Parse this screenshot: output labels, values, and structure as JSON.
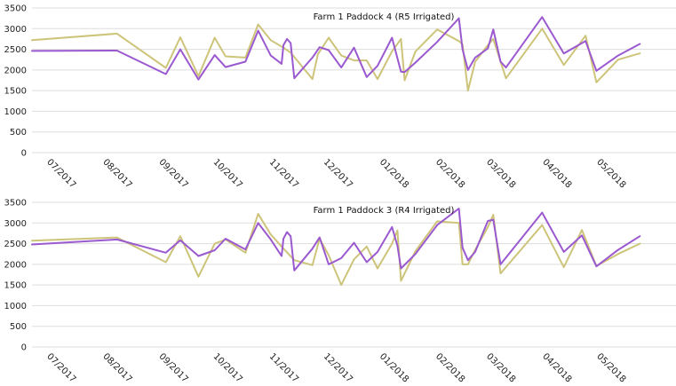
{
  "chart_data": [
    {
      "type": "line",
      "title": "Farm 1 Paddock 4 (R5 Irrigated)",
      "xlabel": "",
      "ylabel": "",
      "ylim": [
        0,
        3500
      ],
      "yticks": [
        0,
        500,
        1000,
        1500,
        2000,
        2500,
        3000,
        3500
      ],
      "xlim": [
        "2017-06-22",
        "2018-06-13"
      ],
      "x_tick_labels": [
        {
          "date": "2017-07-01",
          "label": "07/2017"
        },
        {
          "date": "2017-08-01",
          "label": "08/2017"
        },
        {
          "date": "2017-09-01",
          "label": "09/2017"
        },
        {
          "date": "2017-10-01",
          "label": "10/2017"
        },
        {
          "date": "2017-11-01",
          "label": "11/2017"
        },
        {
          "date": "2017-12-01",
          "label": "12/2017"
        },
        {
          "date": "2018-01-01",
          "label": "01/2018"
        },
        {
          "date": "2018-02-01",
          "label": "02/2018"
        },
        {
          "date": "2018-03-01",
          "label": "03/2018"
        },
        {
          "date": "2018-04-01",
          "label": "04/2018"
        },
        {
          "date": "2018-05-01",
          "label": "05/2018"
        }
      ],
      "grid": "horizontal",
      "legend": "none",
      "series": [
        {
          "color": "#cdc47a",
          "points": [
            [
              "2017-06-22",
              2720
            ],
            [
              "2017-08-08",
              2880
            ],
            [
              "2017-09-04",
              2050
            ],
            [
              "2017-09-12",
              2790
            ],
            [
              "2017-09-22",
              1850
            ],
            [
              "2017-10-01",
              2780
            ],
            [
              "2017-10-07",
              2330
            ],
            [
              "2017-10-18",
              2300
            ],
            [
              "2017-10-25",
              3100
            ],
            [
              "2017-11-01",
              2720
            ],
            [
              "2017-11-08",
              2540
            ],
            [
              "2017-11-12",
              2420
            ],
            [
              "2017-11-24",
              1780
            ],
            [
              "2017-11-27",
              2380
            ],
            [
              "2017-12-03",
              2780
            ],
            [
              "2017-12-10",
              2350
            ],
            [
              "2017-12-17",
              2230
            ],
            [
              "2017-12-24",
              2230
            ],
            [
              "2017-12-30",
              1780
            ],
            [
              "2018-01-07",
              2450
            ],
            [
              "2018-01-12",
              2750
            ],
            [
              "2018-01-14",
              1750
            ],
            [
              "2018-01-20",
              2450
            ],
            [
              "2018-02-01",
              2980
            ],
            [
              "2018-02-13",
              2700
            ],
            [
              "2018-02-15",
              2620
            ],
            [
              "2018-02-18",
              1500
            ],
            [
              "2018-02-22",
              2200
            ],
            [
              "2018-03-01",
              2600
            ],
            [
              "2018-03-04",
              2750
            ],
            [
              "2018-03-11",
              1800
            ],
            [
              "2018-03-31",
              3000
            ],
            [
              "2018-04-12",
              2120
            ],
            [
              "2018-04-24",
              2830
            ],
            [
              "2018-04-30",
              1700
            ],
            [
              "2018-05-12",
              2250
            ],
            [
              "2018-05-24",
              2400
            ]
          ]
        },
        {
          "color": "#9b59d0",
          "points": [
            [
              "2017-06-22",
              2460
            ],
            [
              "2017-08-08",
              2470
            ],
            [
              "2017-09-04",
              1900
            ],
            [
              "2017-09-12",
              2500
            ],
            [
              "2017-09-22",
              1770
            ],
            [
              "2017-10-01",
              2360
            ],
            [
              "2017-10-07",
              2070
            ],
            [
              "2017-10-18",
              2200
            ],
            [
              "2017-10-25",
              2950
            ],
            [
              "2017-11-01",
              2350
            ],
            [
              "2017-11-07",
              2150
            ],
            [
              "2017-11-08",
              2600
            ],
            [
              "2017-11-10",
              2750
            ],
            [
              "2017-11-12",
              2650
            ],
            [
              "2017-11-14",
              1800
            ],
            [
              "2017-11-24",
              2300
            ],
            [
              "2017-11-28",
              2550
            ],
            [
              "2017-12-03",
              2480
            ],
            [
              "2017-12-10",
              2060
            ],
            [
              "2017-12-17",
              2540
            ],
            [
              "2017-12-24",
              1830
            ],
            [
              "2017-12-30",
              2100
            ],
            [
              "2018-01-07",
              2780
            ],
            [
              "2018-01-12",
              1960
            ],
            [
              "2018-01-14",
              1950
            ],
            [
              "2018-01-20",
              2180
            ],
            [
              "2018-02-01",
              2680
            ],
            [
              "2018-02-13",
              3250
            ],
            [
              "2018-02-15",
              2500
            ],
            [
              "2018-02-18",
              2000
            ],
            [
              "2018-02-22",
              2300
            ],
            [
              "2018-03-01",
              2520
            ],
            [
              "2018-03-04",
              2980
            ],
            [
              "2018-03-08",
              2200
            ],
            [
              "2018-03-11",
              2060
            ],
            [
              "2018-03-31",
              3280
            ],
            [
              "2018-04-12",
              2400
            ],
            [
              "2018-04-24",
              2700
            ],
            [
              "2018-04-30",
              1980
            ],
            [
              "2018-05-12",
              2350
            ],
            [
              "2018-05-24",
              2630
            ]
          ]
        }
      ]
    },
    {
      "type": "line",
      "title": "Farm 1 Paddock 3 (R4 Irrigated)",
      "xlabel": "",
      "ylabel": "",
      "ylim": [
        0,
        3500
      ],
      "yticks": [
        0,
        500,
        1000,
        1500,
        2000,
        2500,
        3000,
        3500
      ],
      "xlim": [
        "2017-06-22",
        "2018-06-13"
      ],
      "x_tick_labels": [
        {
          "date": "2017-07-01",
          "label": "07/2017"
        },
        {
          "date": "2017-08-01",
          "label": "08/2017"
        },
        {
          "date": "2017-09-01",
          "label": "09/2017"
        },
        {
          "date": "2017-10-01",
          "label": "10/2017"
        },
        {
          "date": "2017-11-01",
          "label": "11/2017"
        },
        {
          "date": "2017-12-01",
          "label": "12/2017"
        },
        {
          "date": "2018-01-01",
          "label": "01/2018"
        },
        {
          "date": "2018-02-01",
          "label": "02/2018"
        },
        {
          "date": "2018-03-01",
          "label": "03/2018"
        },
        {
          "date": "2018-04-01",
          "label": "04/2018"
        },
        {
          "date": "2018-05-01",
          "label": "05/2018"
        }
      ],
      "grid": "horizontal",
      "legend": "none",
      "series": [
        {
          "color": "#cdc47a",
          "points": [
            [
              "2017-06-22",
              2570
            ],
            [
              "2017-08-08",
              2650
            ],
            [
              "2017-09-04",
              2050
            ],
            [
              "2017-09-12",
              2680
            ],
            [
              "2017-09-22",
              1700
            ],
            [
              "2017-10-01",
              2500
            ],
            [
              "2017-10-07",
              2600
            ],
            [
              "2017-10-18",
              2280
            ],
            [
              "2017-10-25",
              3220
            ],
            [
              "2017-11-01",
              2720
            ],
            [
              "2017-11-07",
              2430
            ],
            [
              "2017-11-14",
              2100
            ],
            [
              "2017-11-24",
              1980
            ],
            [
              "2017-11-28",
              2620
            ],
            [
              "2017-12-03",
              2220
            ],
            [
              "2017-12-10",
              1500
            ],
            [
              "2017-12-17",
              2120
            ],
            [
              "2017-12-24",
              2430
            ],
            [
              "2017-12-30",
              1900
            ],
            [
              "2018-01-07",
              2500
            ],
            [
              "2018-01-10",
              2820
            ],
            [
              "2018-01-12",
              1600
            ],
            [
              "2018-01-20",
              2320
            ],
            [
              "2018-02-01",
              3040
            ],
            [
              "2018-02-13",
              3000
            ],
            [
              "2018-02-15",
              2000
            ],
            [
              "2018-02-18",
              2000
            ],
            [
              "2018-02-22",
              2350
            ],
            [
              "2018-03-01",
              2900
            ],
            [
              "2018-03-04",
              3200
            ],
            [
              "2018-03-08",
              1780
            ],
            [
              "2018-03-31",
              2950
            ],
            [
              "2018-04-12",
              1930
            ],
            [
              "2018-04-22",
              2830
            ],
            [
              "2018-04-30",
              1960
            ],
            [
              "2018-05-12",
              2250
            ],
            [
              "2018-05-24",
              2500
            ]
          ]
        },
        {
          "color": "#9b59d0",
          "points": [
            [
              "2017-06-22",
              2480
            ],
            [
              "2017-08-08",
              2600
            ],
            [
              "2017-09-04",
              2280
            ],
            [
              "2017-09-12",
              2580
            ],
            [
              "2017-09-22",
              2200
            ],
            [
              "2017-10-01",
              2340
            ],
            [
              "2017-10-07",
              2620
            ],
            [
              "2017-10-18",
              2360
            ],
            [
              "2017-10-25",
              3000
            ],
            [
              "2017-11-01",
              2600
            ],
            [
              "2017-11-07",
              2200
            ],
            [
              "2017-11-08",
              2620
            ],
            [
              "2017-11-10",
              2780
            ],
            [
              "2017-11-12",
              2680
            ],
            [
              "2017-11-14",
              1850
            ],
            [
              "2017-11-24",
              2380
            ],
            [
              "2017-11-28",
              2650
            ],
            [
              "2017-12-03",
              2000
            ],
            [
              "2017-12-10",
              2150
            ],
            [
              "2017-12-17",
              2520
            ],
            [
              "2017-12-24",
              2050
            ],
            [
              "2017-12-30",
              2300
            ],
            [
              "2018-01-07",
              2900
            ],
            [
              "2018-01-10",
              2450
            ],
            [
              "2018-01-12",
              1900
            ],
            [
              "2018-01-20",
              2250
            ],
            [
              "2018-02-01",
              2950
            ],
            [
              "2018-02-13",
              3350
            ],
            [
              "2018-02-15",
              2400
            ],
            [
              "2018-02-18",
              2100
            ],
            [
              "2018-02-22",
              2300
            ],
            [
              "2018-03-01",
              3050
            ],
            [
              "2018-03-04",
              3080
            ],
            [
              "2018-03-08",
              2000
            ],
            [
              "2018-03-31",
              3250
            ],
            [
              "2018-04-12",
              2300
            ],
            [
              "2018-04-22",
              2700
            ],
            [
              "2018-04-30",
              1950
            ],
            [
              "2018-05-12",
              2350
            ],
            [
              "2018-05-24",
              2680
            ]
          ]
        }
      ]
    }
  ]
}
